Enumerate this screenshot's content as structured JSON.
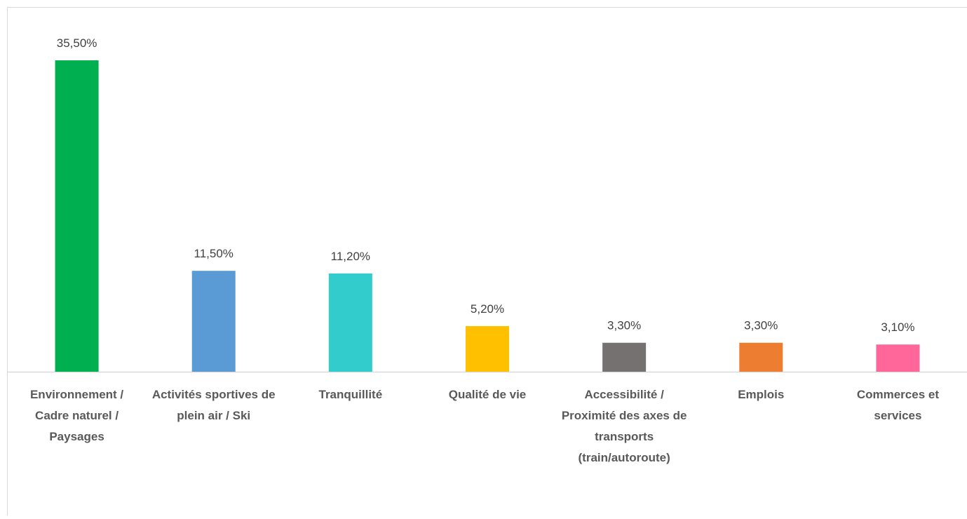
{
  "chart_data": {
    "type": "bar",
    "categories": [
      "Environnement / Cadre naturel / Paysages",
      "Activités sportives de plein air / Ski",
      "Tranquillité",
      "Qualité de vie",
      "Accessibilité / Proximité des axes de transports (train/autoroute)",
      "Emplois",
      "Commerces et services"
    ],
    "values": [
      35.5,
      11.5,
      11.2,
      5.2,
      3.3,
      3.3,
      3.1
    ],
    "value_labels": [
      "35,50%",
      "11,50%",
      "11,20%",
      "5,20%",
      "3,30%",
      "3,30%",
      "3,10%"
    ],
    "colors": [
      "#00b050",
      "#5b9bd5",
      "#33cccc",
      "#ffc000",
      "#767171",
      "#ed7d31",
      "#ff6699"
    ]
  }
}
